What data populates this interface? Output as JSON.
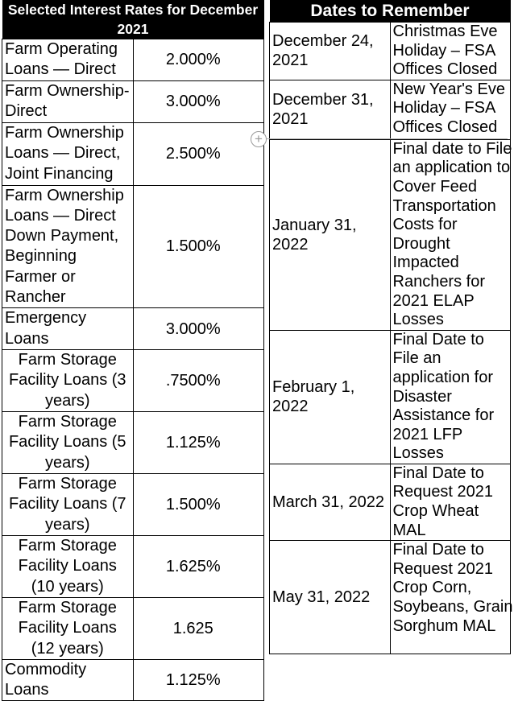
{
  "interest_rates": {
    "title": "Selected Interest Rates for December 2021",
    "rows": [
      {
        "label": "Farm Operating Loans — Direct",
        "rate": "2.000%"
      },
      {
        "label": "Farm Ownership-Direct",
        "rate": "3.000%"
      },
      {
        "label": "Farm Ownership Loans — Direct, Joint Financing",
        "rate": "2.500%"
      },
      {
        "label": "Farm Ownership Loans — Direct Down Payment, Beginning Farmer or Rancher",
        "rate": "1.500%"
      },
      {
        "label": "Emergency Loans",
        "rate": "3.000%"
      },
      {
        "label": "Farm Storage Facility Loans (3 years)",
        "rate": ".7500%"
      },
      {
        "label": "Farm Storage Facility Loans (5 years)",
        "rate": "1.125%"
      },
      {
        "label": "Farm Storage Facility Loans (7 years)",
        "rate": "1.500%"
      },
      {
        "label": "Farm Storage Facility Loans (10 years)",
        "rate": "1.625%"
      },
      {
        "label": "Farm Storage Facility Loans (12 years)",
        "rate": "1.625"
      },
      {
        "label": "Commodity Loans",
        "rate": "1.125%"
      }
    ]
  },
  "dates": {
    "title": "Dates to Remember",
    "rows": [
      {
        "date": "December 24, 2021",
        "event": "Christmas Eve Holiday – FSA Offices Closed"
      },
      {
        "date": "December 31, 2021",
        "event": "New Year's Eve Holiday – FSA Offices Closed"
      },
      {
        "date": "January 31, 2022",
        "event": "Final date to File an application to Cover Feed Transportation Costs for Drought Impacted Ranchers for 2021 ELAP Losses"
      },
      {
        "date": "February 1, 2022",
        "event": "Final Date to File an application for Disaster Assistance for 2021 LFP Losses"
      },
      {
        "date": "March 31, 2022",
        "event": "Final Date to Request 2021 Crop Wheat MAL"
      },
      {
        "date": "May 31, 2022",
        "event": "Final Date to Request 2021 Crop Corn, Soybeans, Grain Sorghum MAL"
      }
    ]
  }
}
